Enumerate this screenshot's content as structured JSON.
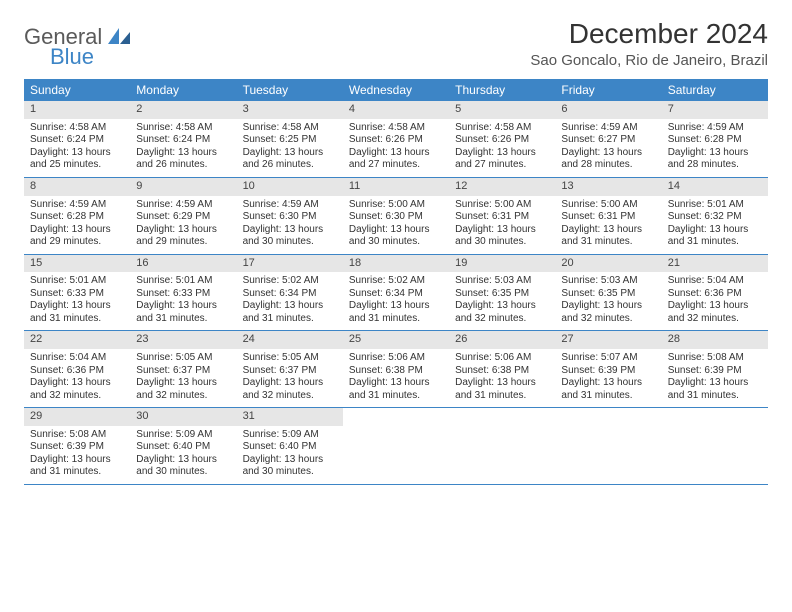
{
  "logo": {
    "word1": "General",
    "word2": "Blue"
  },
  "header": {
    "month_title": "December 2024",
    "location": "Sao Goncalo, Rio de Janeiro, Brazil"
  },
  "colors": {
    "header_bg": "#3d85c6",
    "header_text": "#ffffff",
    "daynum_bg": "#e6e6e6",
    "border": "#3d85c6",
    "text": "#333333"
  },
  "weekdays": [
    "Sunday",
    "Monday",
    "Tuesday",
    "Wednesday",
    "Thursday",
    "Friday",
    "Saturday"
  ],
  "weeks": [
    [
      {
        "n": "1",
        "sr": "Sunrise: 4:58 AM",
        "ss": "Sunset: 6:24 PM",
        "dl": "Daylight: 13 hours and 25 minutes."
      },
      {
        "n": "2",
        "sr": "Sunrise: 4:58 AM",
        "ss": "Sunset: 6:24 PM",
        "dl": "Daylight: 13 hours and 26 minutes."
      },
      {
        "n": "3",
        "sr": "Sunrise: 4:58 AM",
        "ss": "Sunset: 6:25 PM",
        "dl": "Daylight: 13 hours and 26 minutes."
      },
      {
        "n": "4",
        "sr": "Sunrise: 4:58 AM",
        "ss": "Sunset: 6:26 PM",
        "dl": "Daylight: 13 hours and 27 minutes."
      },
      {
        "n": "5",
        "sr": "Sunrise: 4:58 AM",
        "ss": "Sunset: 6:26 PM",
        "dl": "Daylight: 13 hours and 27 minutes."
      },
      {
        "n": "6",
        "sr": "Sunrise: 4:59 AM",
        "ss": "Sunset: 6:27 PM",
        "dl": "Daylight: 13 hours and 28 minutes."
      },
      {
        "n": "7",
        "sr": "Sunrise: 4:59 AM",
        "ss": "Sunset: 6:28 PM",
        "dl": "Daylight: 13 hours and 28 minutes."
      }
    ],
    [
      {
        "n": "8",
        "sr": "Sunrise: 4:59 AM",
        "ss": "Sunset: 6:28 PM",
        "dl": "Daylight: 13 hours and 29 minutes."
      },
      {
        "n": "9",
        "sr": "Sunrise: 4:59 AM",
        "ss": "Sunset: 6:29 PM",
        "dl": "Daylight: 13 hours and 29 minutes."
      },
      {
        "n": "10",
        "sr": "Sunrise: 4:59 AM",
        "ss": "Sunset: 6:30 PM",
        "dl": "Daylight: 13 hours and 30 minutes."
      },
      {
        "n": "11",
        "sr": "Sunrise: 5:00 AM",
        "ss": "Sunset: 6:30 PM",
        "dl": "Daylight: 13 hours and 30 minutes."
      },
      {
        "n": "12",
        "sr": "Sunrise: 5:00 AM",
        "ss": "Sunset: 6:31 PM",
        "dl": "Daylight: 13 hours and 30 minutes."
      },
      {
        "n": "13",
        "sr": "Sunrise: 5:00 AM",
        "ss": "Sunset: 6:31 PM",
        "dl": "Daylight: 13 hours and 31 minutes."
      },
      {
        "n": "14",
        "sr": "Sunrise: 5:01 AM",
        "ss": "Sunset: 6:32 PM",
        "dl": "Daylight: 13 hours and 31 minutes."
      }
    ],
    [
      {
        "n": "15",
        "sr": "Sunrise: 5:01 AM",
        "ss": "Sunset: 6:33 PM",
        "dl": "Daylight: 13 hours and 31 minutes."
      },
      {
        "n": "16",
        "sr": "Sunrise: 5:01 AM",
        "ss": "Sunset: 6:33 PM",
        "dl": "Daylight: 13 hours and 31 minutes."
      },
      {
        "n": "17",
        "sr": "Sunrise: 5:02 AM",
        "ss": "Sunset: 6:34 PM",
        "dl": "Daylight: 13 hours and 31 minutes."
      },
      {
        "n": "18",
        "sr": "Sunrise: 5:02 AM",
        "ss": "Sunset: 6:34 PM",
        "dl": "Daylight: 13 hours and 31 minutes."
      },
      {
        "n": "19",
        "sr": "Sunrise: 5:03 AM",
        "ss": "Sunset: 6:35 PM",
        "dl": "Daylight: 13 hours and 32 minutes."
      },
      {
        "n": "20",
        "sr": "Sunrise: 5:03 AM",
        "ss": "Sunset: 6:35 PM",
        "dl": "Daylight: 13 hours and 32 minutes."
      },
      {
        "n": "21",
        "sr": "Sunrise: 5:04 AM",
        "ss": "Sunset: 6:36 PM",
        "dl": "Daylight: 13 hours and 32 minutes."
      }
    ],
    [
      {
        "n": "22",
        "sr": "Sunrise: 5:04 AM",
        "ss": "Sunset: 6:36 PM",
        "dl": "Daylight: 13 hours and 32 minutes."
      },
      {
        "n": "23",
        "sr": "Sunrise: 5:05 AM",
        "ss": "Sunset: 6:37 PM",
        "dl": "Daylight: 13 hours and 32 minutes."
      },
      {
        "n": "24",
        "sr": "Sunrise: 5:05 AM",
        "ss": "Sunset: 6:37 PM",
        "dl": "Daylight: 13 hours and 32 minutes."
      },
      {
        "n": "25",
        "sr": "Sunrise: 5:06 AM",
        "ss": "Sunset: 6:38 PM",
        "dl": "Daylight: 13 hours and 31 minutes."
      },
      {
        "n": "26",
        "sr": "Sunrise: 5:06 AM",
        "ss": "Sunset: 6:38 PM",
        "dl": "Daylight: 13 hours and 31 minutes."
      },
      {
        "n": "27",
        "sr": "Sunrise: 5:07 AM",
        "ss": "Sunset: 6:39 PM",
        "dl": "Daylight: 13 hours and 31 minutes."
      },
      {
        "n": "28",
        "sr": "Sunrise: 5:08 AM",
        "ss": "Sunset: 6:39 PM",
        "dl": "Daylight: 13 hours and 31 minutes."
      }
    ],
    [
      {
        "n": "29",
        "sr": "Sunrise: 5:08 AM",
        "ss": "Sunset: 6:39 PM",
        "dl": "Daylight: 13 hours and 31 minutes."
      },
      {
        "n": "30",
        "sr": "Sunrise: 5:09 AM",
        "ss": "Sunset: 6:40 PM",
        "dl": "Daylight: 13 hours and 30 minutes."
      },
      {
        "n": "31",
        "sr": "Sunrise: 5:09 AM",
        "ss": "Sunset: 6:40 PM",
        "dl": "Daylight: 13 hours and 30 minutes."
      },
      null,
      null,
      null,
      null
    ]
  ]
}
